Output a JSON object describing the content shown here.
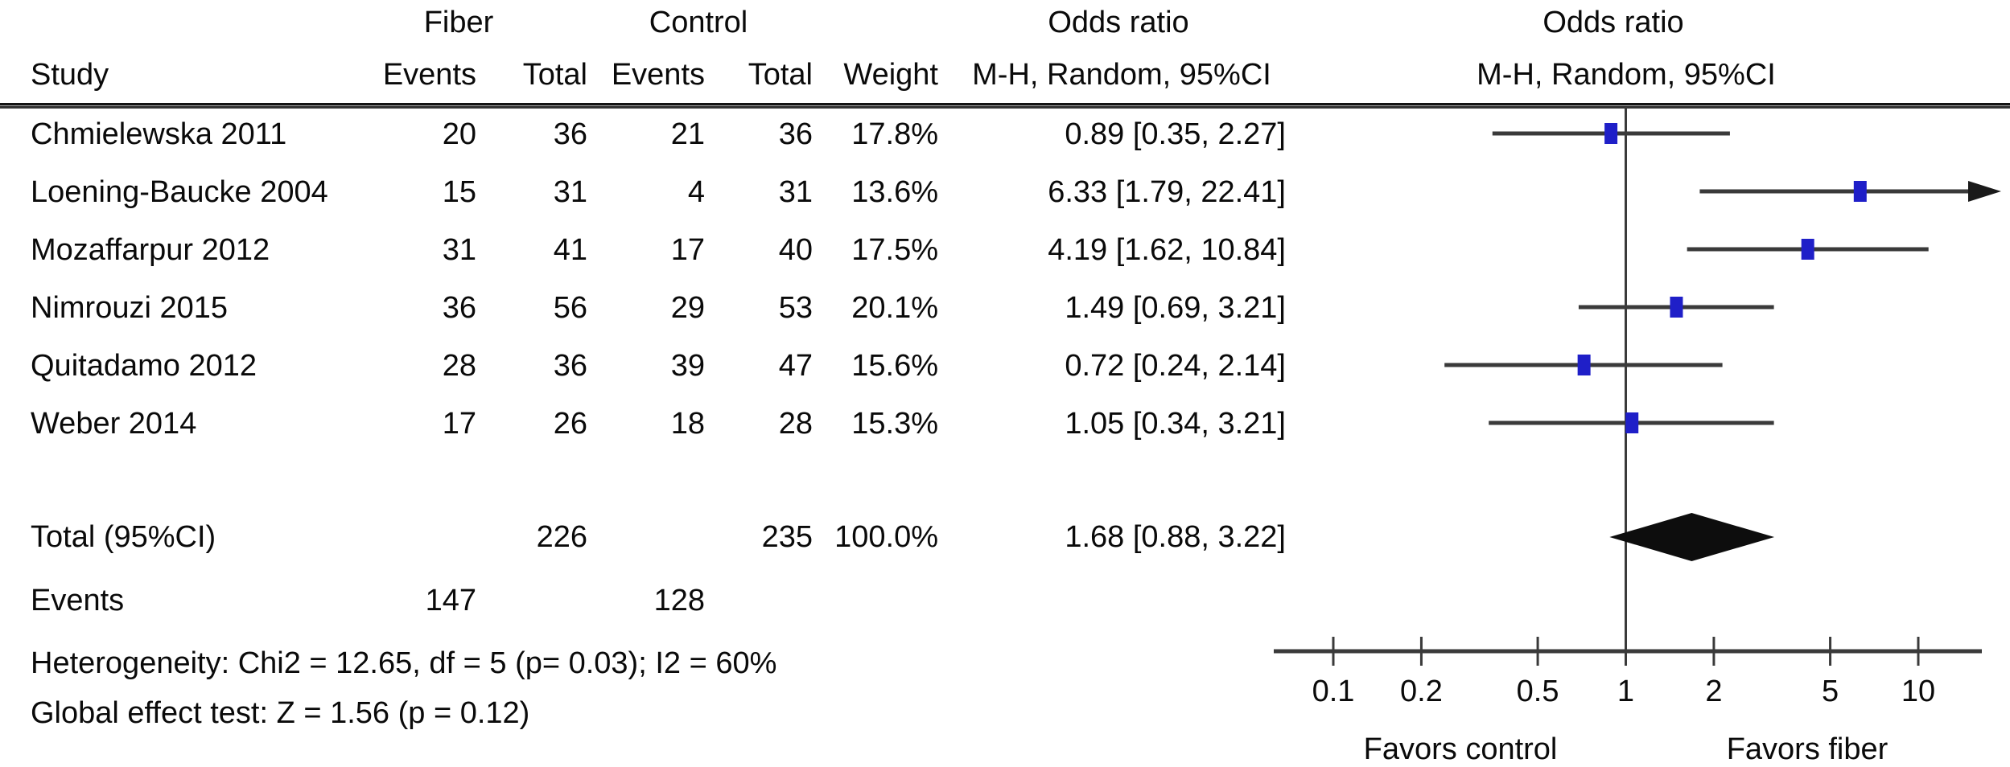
{
  "table": {
    "group_headers": {
      "fiber": "Fiber",
      "control": "Control",
      "odds_ratio_text": "Odds ratio",
      "odds_ratio_plot": "Odds ratio"
    },
    "col_headers": {
      "study": "Study",
      "fiber_events": "Events",
      "fiber_total": "Total",
      "control_events": "Events",
      "control_total": "Total",
      "weight": "Weight",
      "mh_text": "M-H, Random, 95%CI",
      "mh_plot": "M-H, Random, 95%CI"
    },
    "rows": [
      {
        "study": "Chmielewska 2011",
        "fiber_events": "20",
        "fiber_total": "36",
        "control_events": "21",
        "control_total": "36",
        "weight": "17.8%",
        "or_ci": "0.89 [0.35, 2.27]"
      },
      {
        "study": "Loening-Baucke 2004",
        "fiber_events": "15",
        "fiber_total": "31",
        "control_events": "4",
        "control_total": "31",
        "weight": "13.6%",
        "or_ci": "6.33 [1.79, 22.41]"
      },
      {
        "study": "Mozaffarpur 2012",
        "fiber_events": "31",
        "fiber_total": "41",
        "control_events": "17",
        "control_total": "40",
        "weight": "17.5%",
        "or_ci": "4.19 [1.62, 10.84]"
      },
      {
        "study": "Nimrouzi 2015",
        "fiber_events": "36",
        "fiber_total": "56",
        "control_events": "29",
        "control_total": "53",
        "weight": "20.1%",
        "or_ci": "1.49 [0.69, 3.21]"
      },
      {
        "study": "Quitadamo 2012",
        "fiber_events": "28",
        "fiber_total": "36",
        "control_events": "39",
        "control_total": "47",
        "weight": "15.6%",
        "or_ci": "0.72 [0.24, 2.14]"
      },
      {
        "study": "Weber 2014",
        "fiber_events": "17",
        "fiber_total": "26",
        "control_events": "18",
        "control_total": "28",
        "weight": "15.3%",
        "or_ci": "1.05 [0.34, 3.21]"
      }
    ],
    "total_row": {
      "label": "Total (95%CI)",
      "fiber_total": "226",
      "control_total": "235",
      "weight": "100.0%",
      "or_ci": "1.68 [0.88, 3.22]"
    },
    "events_row": {
      "label": "Events",
      "fiber_events": "147",
      "control_events": "128"
    },
    "footer_lines": [
      "Heterogeneity: Chi2 = 12.65, df = 5 (p= 0.03); I2 = 60%",
      "Global effect test: Z = 1.56 (p = 0.12)"
    ]
  },
  "chart_data": {
    "type": "scatter",
    "subtype": "forest-plot",
    "x_scale": "log",
    "x_range": [
      0.063,
      16.5
    ],
    "null_line": 1,
    "x_ticks": [
      0.1,
      0.2,
      0.5,
      1,
      2,
      5,
      10
    ],
    "x_tick_labels": [
      "0.1",
      "0.2",
      "0.5",
      "1",
      "2",
      "5",
      "10"
    ],
    "grid": false,
    "studies": [
      {
        "name": "Chmielewska 2011",
        "or": 0.89,
        "low": 0.35,
        "high": 2.27,
        "weight_pct": 17.8
      },
      {
        "name": "Loening-Baucke 2004",
        "or": 6.33,
        "low": 1.79,
        "high": 22.41,
        "weight_pct": 13.6
      },
      {
        "name": "Mozaffarpur 2012",
        "or": 4.19,
        "low": 1.62,
        "high": 10.84,
        "weight_pct": 17.5
      },
      {
        "name": "Nimrouzi 2015",
        "or": 1.49,
        "low": 0.69,
        "high": 3.21,
        "weight_pct": 20.1
      },
      {
        "name": "Quitadamo 2012",
        "or": 0.72,
        "low": 0.24,
        "high": 2.14,
        "weight_pct": 15.6
      },
      {
        "name": "Weber 2014",
        "or": 1.05,
        "low": 0.34,
        "high": 3.21,
        "weight_pct": 15.3
      }
    ],
    "summary": {
      "label": "Total (95%CI)",
      "or": 1.68,
      "low": 0.88,
      "high": 3.22
    },
    "x_axis_annotations": {
      "left": "Favors control",
      "right": "Favors fiber"
    },
    "colors": {
      "marker": "#1f1fc8",
      "diamond": "#0d0d0d",
      "line": "#3a3a3a",
      "text": "#0a0a0a"
    }
  }
}
